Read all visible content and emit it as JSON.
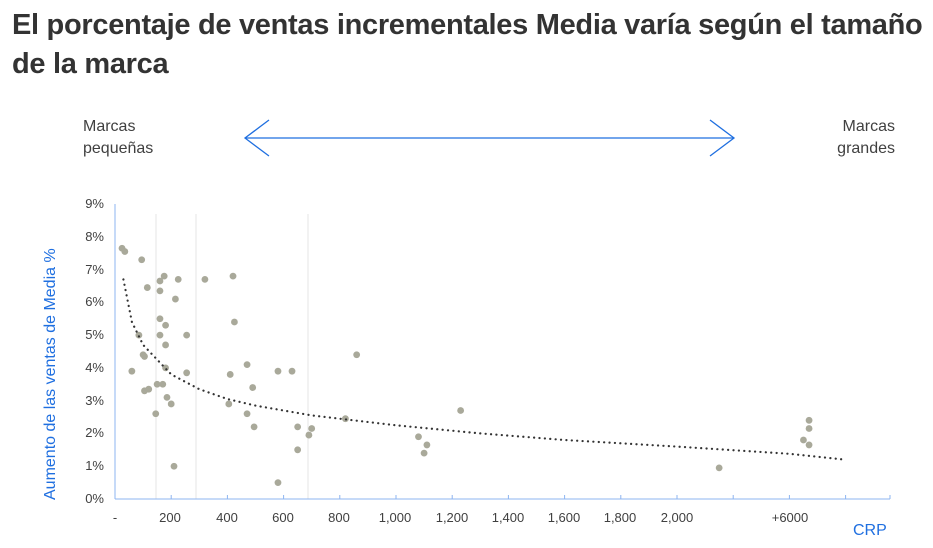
{
  "title": "El porcentaje de ventas incrementales Media varía según el tamaño de la marca",
  "size_scale": {
    "left_label_line1": "Marcas",
    "left_label_line2": "pequeñas",
    "right_label_line1": "Marcas",
    "right_label_line2": "grandes",
    "arrow_color": "#1F6FE0"
  },
  "chart_data": {
    "type": "scatter",
    "title": "El porcentaje de ventas incrementales Media varía según el tamaño de la marca",
    "xlabel": "CRP",
    "ylabel": "Aumento de las ventas de Media %",
    "x_tick_labels": [
      "-",
      "200",
      "400",
      "600",
      "800",
      "1,000",
      "1,200",
      "1,400",
      "1,600",
      "1,800",
      "2,000",
      "+6000"
    ],
    "y_tick_labels": [
      "0%",
      "1%",
      "2%",
      "3%",
      "4%",
      "5%",
      "6%",
      "7%",
      "8%",
      "9%"
    ],
    "xlim": [
      0,
      2750
    ],
    "ylim": [
      0,
      9
    ],
    "x_axis_note": "Axis break: values beyond 2,000 compressed; '+6000' cluster plotted near x≈2400",
    "grid": "sparse vertical gridlines",
    "legend": "none",
    "point_color": "#A9A99A",
    "trendline": {
      "style": "dotted",
      "color": "#333333",
      "type": "logarithmic",
      "points": [
        [
          30,
          6.7
        ],
        [
          60,
          5.4
        ],
        [
          100,
          4.7
        ],
        [
          200,
          3.8
        ],
        [
          300,
          3.35
        ],
        [
          400,
          3.05
        ],
        [
          500,
          2.85
        ],
        [
          700,
          2.55
        ],
        [
          1000,
          2.25
        ],
        [
          1300,
          2.0
        ],
        [
          1600,
          1.8
        ],
        [
          2000,
          1.6
        ],
        [
          2400,
          1.38
        ],
        [
          2600,
          1.2
        ]
      ]
    },
    "series": [
      {
        "name": "Marcas",
        "points": [
          [
            25,
            7.65
          ],
          [
            35,
            7.55
          ],
          [
            95,
            7.3
          ],
          [
            175,
            6.8
          ],
          [
            225,
            6.7
          ],
          [
            115,
            6.45
          ],
          [
            160,
            6.65
          ],
          [
            160,
            6.35
          ],
          [
            215,
            6.1
          ],
          [
            320,
            6.7
          ],
          [
            420,
            6.8
          ],
          [
            160,
            5.5
          ],
          [
            180,
            5.3
          ],
          [
            160,
            5.0
          ],
          [
            255,
            5.0
          ],
          [
            180,
            4.7
          ],
          [
            85,
            5.0
          ],
          [
            425,
            5.4
          ],
          [
            100,
            4.4
          ],
          [
            105,
            4.35
          ],
          [
            60,
            3.9
          ],
          [
            180,
            4.0
          ],
          [
            255,
            3.85
          ],
          [
            470,
            4.1
          ],
          [
            410,
            3.8
          ],
          [
            580,
            3.9
          ],
          [
            630,
            3.9
          ],
          [
            860,
            4.4
          ],
          [
            150,
            3.5
          ],
          [
            170,
            3.5
          ],
          [
            185,
            3.1
          ],
          [
            200,
            2.9
          ],
          [
            105,
            3.3
          ],
          [
            120,
            3.35
          ],
          [
            145,
            2.6
          ],
          [
            490,
            3.4
          ],
          [
            405,
            2.9
          ],
          [
            470,
            2.6
          ],
          [
            495,
            2.2
          ],
          [
            650,
            2.2
          ],
          [
            700,
            2.15
          ],
          [
            690,
            1.95
          ],
          [
            650,
            1.5
          ],
          [
            820,
            2.45
          ],
          [
            1230,
            2.7
          ],
          [
            1080,
            1.9
          ],
          [
            1110,
            1.65
          ],
          [
            1100,
            1.4
          ],
          [
            210,
            1.0
          ],
          [
            580,
            0.5
          ],
          [
            2150,
            0.95
          ],
          [
            2470,
            2.4
          ],
          [
            2470,
            2.15
          ],
          [
            2450,
            1.8
          ],
          [
            2470,
            1.65
          ]
        ]
      }
    ]
  }
}
